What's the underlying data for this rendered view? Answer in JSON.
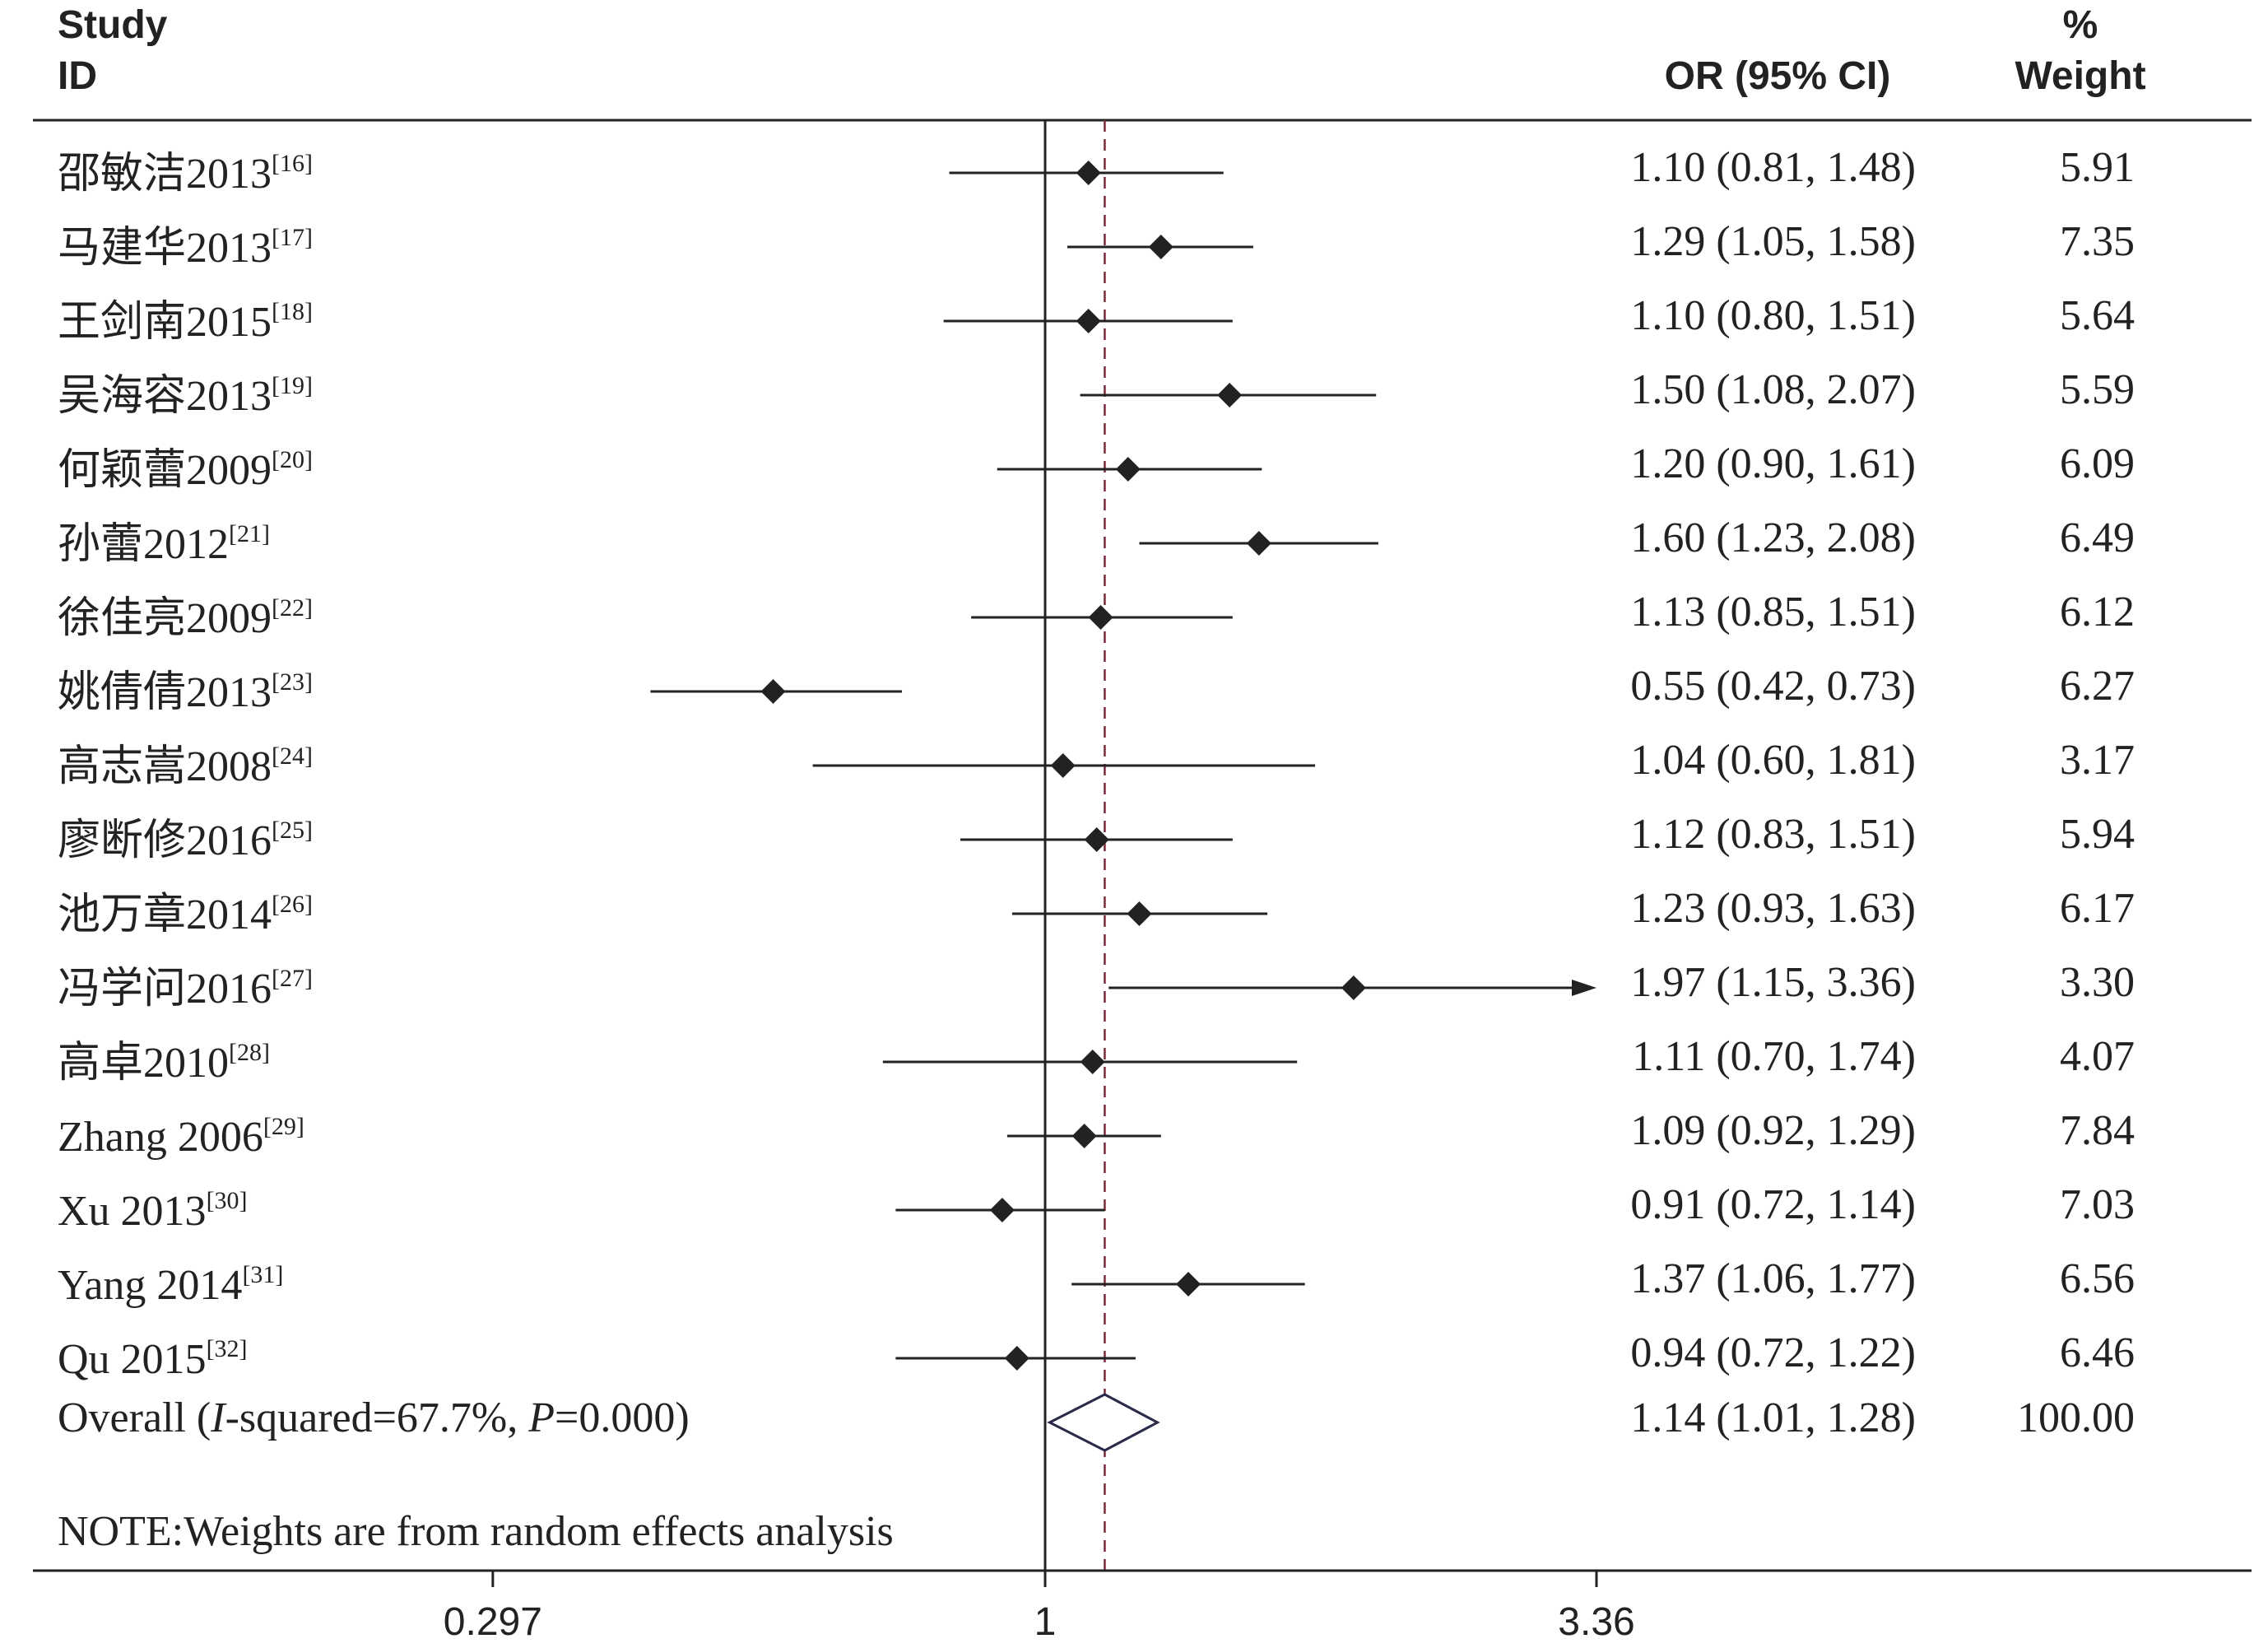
{
  "headers": {
    "study_line1": "Study",
    "study_line2": "ID",
    "or": "OR (95% CI)",
    "weight_line1": "%",
    "weight_line2": "Weight"
  },
  "chart_data": {
    "type": "forest",
    "x_scale": "log",
    "xlim": [
      0.297,
      3.36
    ],
    "x_ticks": [
      "0.297",
      "1",
      "3.36"
    ],
    "null_line": 1,
    "colors": {
      "ink": "#222222",
      "ref_line": "#7a2a3a",
      "overall_diamond": "#2a2a4a"
    },
    "studies": [
      {
        "name": "邵敏洁2013",
        "ref": "[16]",
        "or": 1.1,
        "lo": 0.81,
        "hi": 1.48,
        "ci_text": "1.10 (0.81, 1.48)",
        "weight": "5.91"
      },
      {
        "name": "马建华2013",
        "ref": "[17]",
        "or": 1.29,
        "lo": 1.05,
        "hi": 1.58,
        "ci_text": "1.29 (1.05, 1.58)",
        "weight": "7.35"
      },
      {
        "name": "王剑南2015",
        "ref": "[18]",
        "or": 1.1,
        "lo": 0.8,
        "hi": 1.51,
        "ci_text": "1.10 (0.80, 1.51)",
        "weight": "5.64"
      },
      {
        "name": "吴海容2013",
        "ref": "[19]",
        "or": 1.5,
        "lo": 1.08,
        "hi": 2.07,
        "ci_text": "1.50 (1.08, 2.07)",
        "weight": "5.59"
      },
      {
        "name": "何颖蕾2009",
        "ref": "[20]",
        "or": 1.2,
        "lo": 0.9,
        "hi": 1.61,
        "ci_text": "1.20 (0.90, 1.61)",
        "weight": "6.09"
      },
      {
        "name": "孙蕾2012",
        "ref": "[21]",
        "or": 1.6,
        "lo": 1.23,
        "hi": 2.08,
        "ci_text": "1.60 (1.23, 2.08)",
        "weight": "6.49"
      },
      {
        "name": "徐佳亮2009",
        "ref": "[22]",
        "or": 1.13,
        "lo": 0.85,
        "hi": 1.51,
        "ci_text": "1.13 (0.85, 1.51)",
        "weight": "6.12"
      },
      {
        "name": "姚倩倩2013",
        "ref": "[23]",
        "or": 0.55,
        "lo": 0.42,
        "hi": 0.73,
        "ci_text": "0.55 (0.42, 0.73)",
        "weight": "6.27"
      },
      {
        "name": "高志嵩2008",
        "ref": "[24]",
        "or": 1.04,
        "lo": 0.6,
        "hi": 1.81,
        "ci_text": "1.04 (0.60, 1.81)",
        "weight": "3.17"
      },
      {
        "name": "廖断修2016",
        "ref": "[25]",
        "or": 1.12,
        "lo": 0.83,
        "hi": 1.51,
        "ci_text": "1.12 (0.83, 1.51)",
        "weight": "5.94"
      },
      {
        "name": "池万章2014",
        "ref": "[26]",
        "or": 1.23,
        "lo": 0.93,
        "hi": 1.63,
        "ci_text": "1.23 (0.93, 1.63)",
        "weight": "6.17"
      },
      {
        "name": "冯学问2016",
        "ref": "[27]",
        "or": 1.97,
        "lo": 1.15,
        "hi": 3.36,
        "ci_text": "1.97 (1.15, 3.36)",
        "weight": "3.30",
        "arrow": true
      },
      {
        "name": "高卓2010",
        "ref": "[28]",
        "or": 1.11,
        "lo": 0.7,
        "hi": 1.74,
        "ci_text": "1.11 (0.70, 1.74)",
        "weight": "4.07"
      },
      {
        "name": "Zhang 2006",
        "ref": "[29]",
        "or": 1.09,
        "lo": 0.92,
        "hi": 1.29,
        "ci_text": "1.09 (0.92, 1.29)",
        "weight": "7.84"
      },
      {
        "name": "Xu 2013",
        "ref": "[30]",
        "or": 0.91,
        "lo": 0.72,
        "hi": 1.14,
        "ci_text": "0.91 (0.72, 1.14)",
        "weight": "7.03"
      },
      {
        "name": "Yang 2014",
        "ref": "[31]",
        "or": 1.37,
        "lo": 1.06,
        "hi": 1.77,
        "ci_text": "1.37 (1.06, 1.77)",
        "weight": "6.56"
      },
      {
        "name": "Qu 2015",
        "ref": "[32]",
        "or": 0.94,
        "lo": 0.72,
        "hi": 1.22,
        "ci_text": "0.94 (0.72, 1.22)",
        "weight": "6.46"
      }
    ],
    "overall": {
      "label_prefix": "Overall (",
      "label_i": "I",
      "label_mid": "-squared=67.7%, ",
      "label_p": "P",
      "label_suffix": "=0.000)",
      "or": 1.14,
      "lo": 1.01,
      "hi": 1.28,
      "ci_text": "1.14 (1.01, 1.28)",
      "weight": "100.00"
    },
    "note": "NOTE:Weights are from random effects analysis"
  }
}
